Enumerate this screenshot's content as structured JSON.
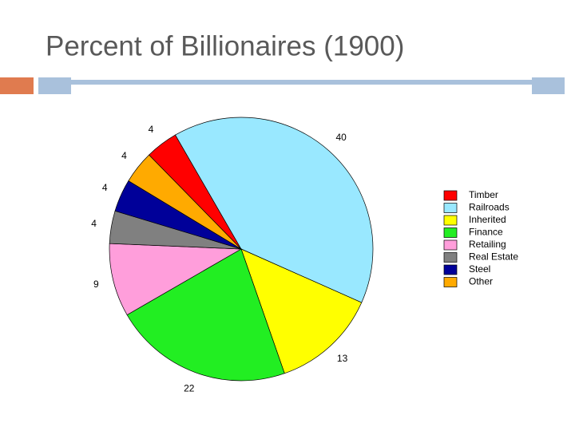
{
  "chart_data": {
    "type": "pie",
    "title": "Percent of Billionaires (1900)",
    "categories": [
      "Timber",
      "Railroads",
      "Inherited",
      "Finance",
      "Retailing",
      "Real Estate",
      "Steel",
      "Other"
    ],
    "values": [
      4,
      40,
      13,
      22,
      9,
      4,
      4,
      4
    ],
    "colors": [
      "#ff0000",
      "#99e8ff",
      "#ffff00",
      "#22ee22",
      "#ff9edb",
      "#808080",
      "#000099",
      "#ffaa00"
    ],
    "legend": "right"
  }
}
